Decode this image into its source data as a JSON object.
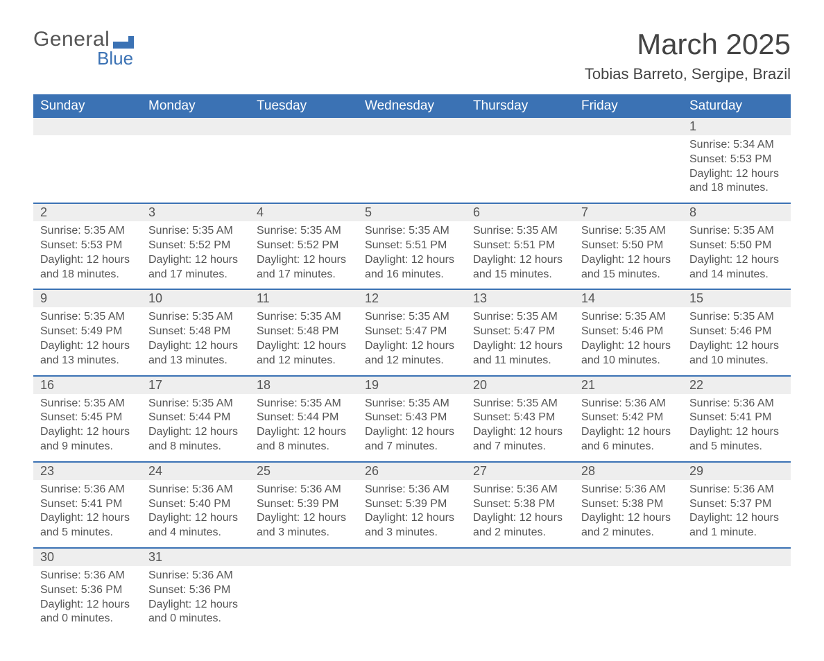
{
  "logo": {
    "textTop": "General",
    "textBottom": "Blue",
    "accent": "#3b72b4"
  },
  "title": "March 2025",
  "location": "Tobias Barreto, Sergipe, Brazil",
  "colors": {
    "headerBg": "#3b72b4",
    "headerText": "#ffffff",
    "dayRowBg": "#eeeeee",
    "text": "#555555",
    "border": "#3b72b4",
    "background": "#ffffff"
  },
  "dayHeaders": [
    "Sunday",
    "Monday",
    "Tuesday",
    "Wednesday",
    "Thursday",
    "Friday",
    "Saturday"
  ],
  "weeks": [
    [
      null,
      null,
      null,
      null,
      null,
      null,
      {
        "n": "1",
        "sr": "Sunrise: 5:34 AM",
        "ss": "Sunset: 5:53 PM",
        "dl": "Daylight: 12 hours and 18 minutes."
      }
    ],
    [
      {
        "n": "2",
        "sr": "Sunrise: 5:35 AM",
        "ss": "Sunset: 5:53 PM",
        "dl": "Daylight: 12 hours and 18 minutes."
      },
      {
        "n": "3",
        "sr": "Sunrise: 5:35 AM",
        "ss": "Sunset: 5:52 PM",
        "dl": "Daylight: 12 hours and 17 minutes."
      },
      {
        "n": "4",
        "sr": "Sunrise: 5:35 AM",
        "ss": "Sunset: 5:52 PM",
        "dl": "Daylight: 12 hours and 17 minutes."
      },
      {
        "n": "5",
        "sr": "Sunrise: 5:35 AM",
        "ss": "Sunset: 5:51 PM",
        "dl": "Daylight: 12 hours and 16 minutes."
      },
      {
        "n": "6",
        "sr": "Sunrise: 5:35 AM",
        "ss": "Sunset: 5:51 PM",
        "dl": "Daylight: 12 hours and 15 minutes."
      },
      {
        "n": "7",
        "sr": "Sunrise: 5:35 AM",
        "ss": "Sunset: 5:50 PM",
        "dl": "Daylight: 12 hours and 15 minutes."
      },
      {
        "n": "8",
        "sr": "Sunrise: 5:35 AM",
        "ss": "Sunset: 5:50 PM",
        "dl": "Daylight: 12 hours and 14 minutes."
      }
    ],
    [
      {
        "n": "9",
        "sr": "Sunrise: 5:35 AM",
        "ss": "Sunset: 5:49 PM",
        "dl": "Daylight: 12 hours and 13 minutes."
      },
      {
        "n": "10",
        "sr": "Sunrise: 5:35 AM",
        "ss": "Sunset: 5:48 PM",
        "dl": "Daylight: 12 hours and 13 minutes."
      },
      {
        "n": "11",
        "sr": "Sunrise: 5:35 AM",
        "ss": "Sunset: 5:48 PM",
        "dl": "Daylight: 12 hours and 12 minutes."
      },
      {
        "n": "12",
        "sr": "Sunrise: 5:35 AM",
        "ss": "Sunset: 5:47 PM",
        "dl": "Daylight: 12 hours and 12 minutes."
      },
      {
        "n": "13",
        "sr": "Sunrise: 5:35 AM",
        "ss": "Sunset: 5:47 PM",
        "dl": "Daylight: 12 hours and 11 minutes."
      },
      {
        "n": "14",
        "sr": "Sunrise: 5:35 AM",
        "ss": "Sunset: 5:46 PM",
        "dl": "Daylight: 12 hours and 10 minutes."
      },
      {
        "n": "15",
        "sr": "Sunrise: 5:35 AM",
        "ss": "Sunset: 5:46 PM",
        "dl": "Daylight: 12 hours and 10 minutes."
      }
    ],
    [
      {
        "n": "16",
        "sr": "Sunrise: 5:35 AM",
        "ss": "Sunset: 5:45 PM",
        "dl": "Daylight: 12 hours and 9 minutes."
      },
      {
        "n": "17",
        "sr": "Sunrise: 5:35 AM",
        "ss": "Sunset: 5:44 PM",
        "dl": "Daylight: 12 hours and 8 minutes."
      },
      {
        "n": "18",
        "sr": "Sunrise: 5:35 AM",
        "ss": "Sunset: 5:44 PM",
        "dl": "Daylight: 12 hours and 8 minutes."
      },
      {
        "n": "19",
        "sr": "Sunrise: 5:35 AM",
        "ss": "Sunset: 5:43 PM",
        "dl": "Daylight: 12 hours and 7 minutes."
      },
      {
        "n": "20",
        "sr": "Sunrise: 5:35 AM",
        "ss": "Sunset: 5:43 PM",
        "dl": "Daylight: 12 hours and 7 minutes."
      },
      {
        "n": "21",
        "sr": "Sunrise: 5:36 AM",
        "ss": "Sunset: 5:42 PM",
        "dl": "Daylight: 12 hours and 6 minutes."
      },
      {
        "n": "22",
        "sr": "Sunrise: 5:36 AM",
        "ss": "Sunset: 5:41 PM",
        "dl": "Daylight: 12 hours and 5 minutes."
      }
    ],
    [
      {
        "n": "23",
        "sr": "Sunrise: 5:36 AM",
        "ss": "Sunset: 5:41 PM",
        "dl": "Daylight: 12 hours and 5 minutes."
      },
      {
        "n": "24",
        "sr": "Sunrise: 5:36 AM",
        "ss": "Sunset: 5:40 PM",
        "dl": "Daylight: 12 hours and 4 minutes."
      },
      {
        "n": "25",
        "sr": "Sunrise: 5:36 AM",
        "ss": "Sunset: 5:39 PM",
        "dl": "Daylight: 12 hours and 3 minutes."
      },
      {
        "n": "26",
        "sr": "Sunrise: 5:36 AM",
        "ss": "Sunset: 5:39 PM",
        "dl": "Daylight: 12 hours and 3 minutes."
      },
      {
        "n": "27",
        "sr": "Sunrise: 5:36 AM",
        "ss": "Sunset: 5:38 PM",
        "dl": "Daylight: 12 hours and 2 minutes."
      },
      {
        "n": "28",
        "sr": "Sunrise: 5:36 AM",
        "ss": "Sunset: 5:38 PM",
        "dl": "Daylight: 12 hours and 2 minutes."
      },
      {
        "n": "29",
        "sr": "Sunrise: 5:36 AM",
        "ss": "Sunset: 5:37 PM",
        "dl": "Daylight: 12 hours and 1 minute."
      }
    ],
    [
      {
        "n": "30",
        "sr": "Sunrise: 5:36 AM",
        "ss": "Sunset: 5:36 PM",
        "dl": "Daylight: 12 hours and 0 minutes."
      },
      {
        "n": "31",
        "sr": "Sunrise: 5:36 AM",
        "ss": "Sunset: 5:36 PM",
        "dl": "Daylight: 12 hours and 0 minutes."
      },
      null,
      null,
      null,
      null,
      null
    ]
  ]
}
